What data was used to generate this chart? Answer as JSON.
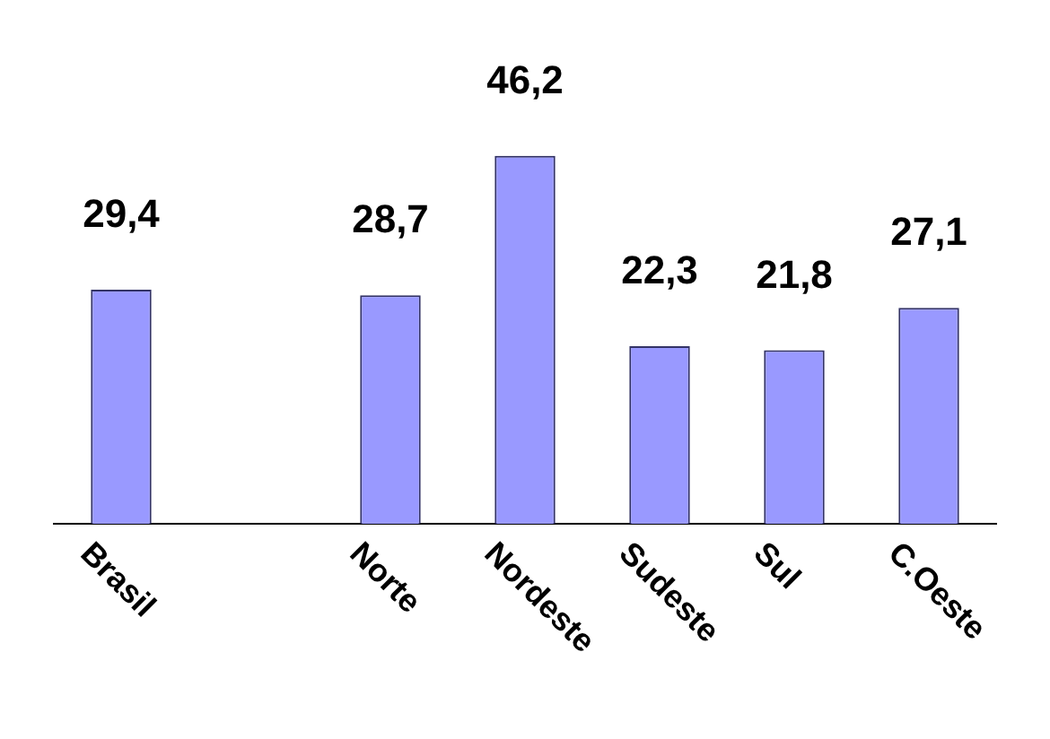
{
  "chart_data": {
    "type": "bar",
    "categories": [
      "Brasil",
      null,
      "Norte",
      "Nordeste",
      "Sudeste",
      "Sul",
      "C.Oeste"
    ],
    "values": [
      29.4,
      null,
      28.7,
      46.2,
      22.3,
      21.8,
      27.1
    ],
    "value_labels": [
      "29,4",
      null,
      "28,7",
      "46,2",
      "22,3",
      "21,8",
      "27,1"
    ],
    "color": "#9999ff",
    "grid": false,
    "legend": false
  }
}
